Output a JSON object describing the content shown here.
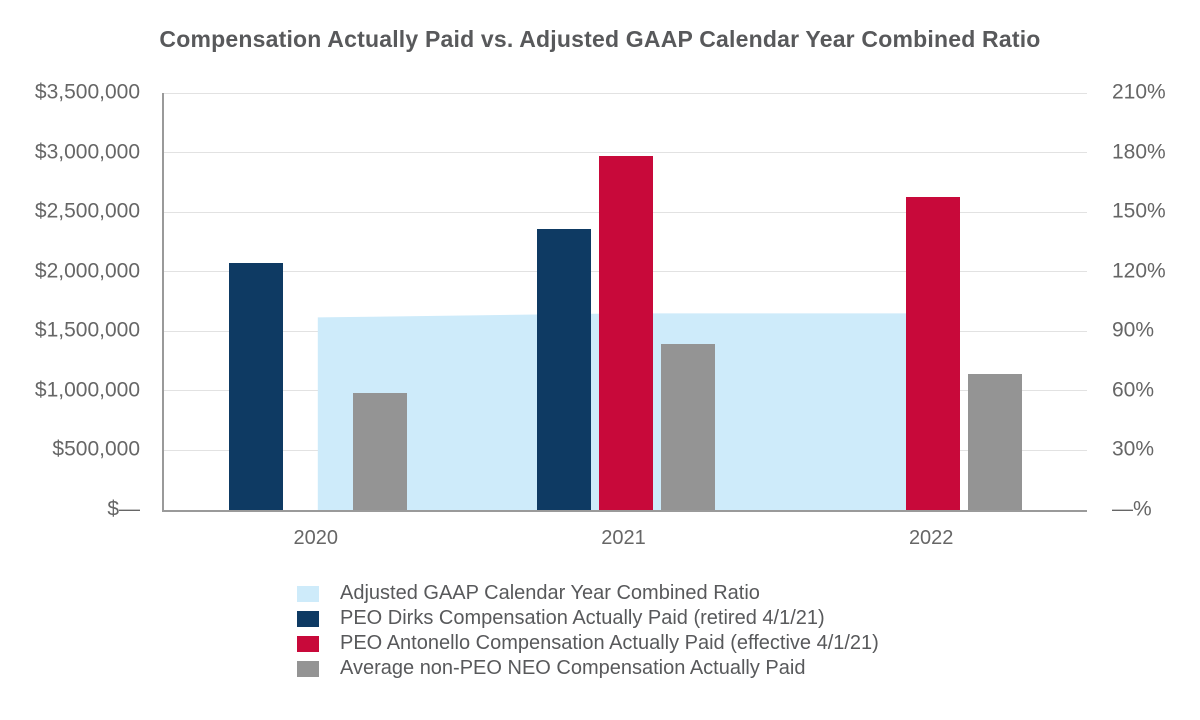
{
  "title": "Compensation Actually Paid vs. Adjusted GAAP Calendar Year Combined Ratio",
  "colors": {
    "area": "#CEEBFA",
    "navy": "#0E3A63",
    "red": "#C8093A",
    "gray": "#949494",
    "gridline": "#E2E2E2",
    "axis_line": "#9A9A9A",
    "title_text": "#58595B",
    "tick_text": "#666666",
    "legend_text": "#58595B"
  },
  "chart_data": {
    "type": "combo: area (right axis) + grouped bars (left axis)",
    "categories": [
      "2020",
      "2021",
      "2022"
    ],
    "series": [
      {
        "name": "Adjusted GAAP Calendar Year Combined Ratio",
        "type": "area",
        "axis": "right",
        "color": "area",
        "unit": "%",
        "values": [
          97,
          99,
          99
        ]
      },
      {
        "name": "PEO Dirks Compensation Actually Paid (retired 4/1/21)",
        "type": "bar",
        "axis": "left",
        "color": "navy",
        "unit": "$",
        "values": [
          2070000,
          2360000,
          null
        ]
      },
      {
        "name": "PEO Antonello Compensation Actually Paid (effective 4/1/21)",
        "type": "bar",
        "axis": "left",
        "color": "red",
        "unit": "$",
        "values": [
          null,
          2970000,
          2630000
        ]
      },
      {
        "name": "Average non-PEO NEO Compensation Actually Paid",
        "type": "bar",
        "axis": "left",
        "color": "gray",
        "unit": "$",
        "values": [
          980000,
          1395000,
          1140000
        ]
      }
    ],
    "left_axis": {
      "min": 0,
      "max": 3500000,
      "step": 500000,
      "ticks": [
        "$3,500,000",
        "$3,000,000",
        "$2,500,000",
        "$2,000,000",
        "$1,500,000",
        "$1,000,000",
        "$500,000",
        "$—"
      ]
    },
    "right_axis": {
      "min": 0,
      "max": 210,
      "step": 30,
      "ticks": [
        "210%",
        "180%",
        "150%",
        "120%",
        "90%",
        "60%",
        "30%",
        "—%"
      ]
    },
    "grid": "horizontal gridlines on",
    "legend_position": "bottom"
  }
}
